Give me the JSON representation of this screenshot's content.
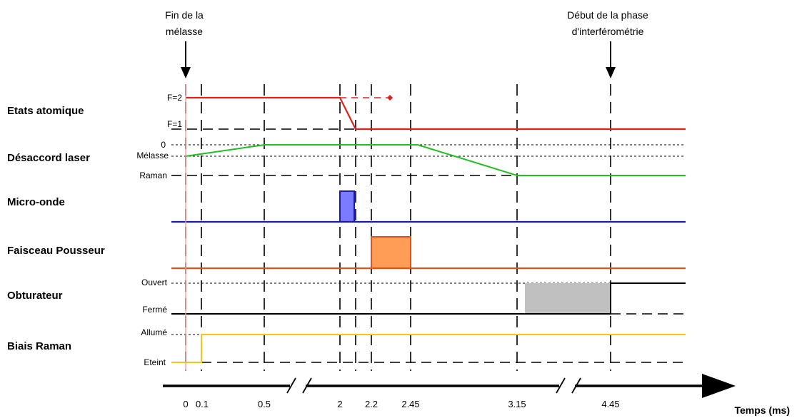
{
  "annotations": {
    "start": [
      "Fin de la",
      "mélasse"
    ],
    "end": [
      "Début de la phase",
      "d'interférométrie"
    ]
  },
  "rows": {
    "etats": {
      "label": "Etats atomique",
      "levels": [
        "F=2",
        "F=1"
      ]
    },
    "desaccord": {
      "label": "Désaccord laser",
      "levels": [
        "0",
        "Mélasse",
        "Raman"
      ]
    },
    "micro": {
      "label": "Micro-onde"
    },
    "faisceau": {
      "label": "Faisceau Pousseur"
    },
    "obturateur": {
      "label": "Obturateur",
      "levels": [
        "Ouvert",
        "Fermé"
      ]
    },
    "biais": {
      "label": "Biais Raman",
      "levels": [
        "Allumé",
        "Eteint"
      ]
    }
  },
  "axis": {
    "title": "Temps (ms)",
    "ticks": [
      "0",
      "0.1",
      "0.5",
      "2",
      "2.2",
      "2.45",
      "3.15",
      "4.45"
    ],
    "tick_values": [
      0,
      0.1,
      0.5,
      2,
      2.2,
      2.45,
      3.15,
      4.45
    ]
  },
  "colors": {
    "etats": "#e0201b",
    "desaccord": "#1fc21f",
    "micro": "#1a1aa6",
    "micro_fill": "#7b7bff",
    "faisceau": "#e0531b",
    "faisceau_fill": "#ff9c55",
    "obturateur_fill": "#c0c0c0",
    "biais": "#f5c518",
    "marker": "#f0a0a0"
  }
}
